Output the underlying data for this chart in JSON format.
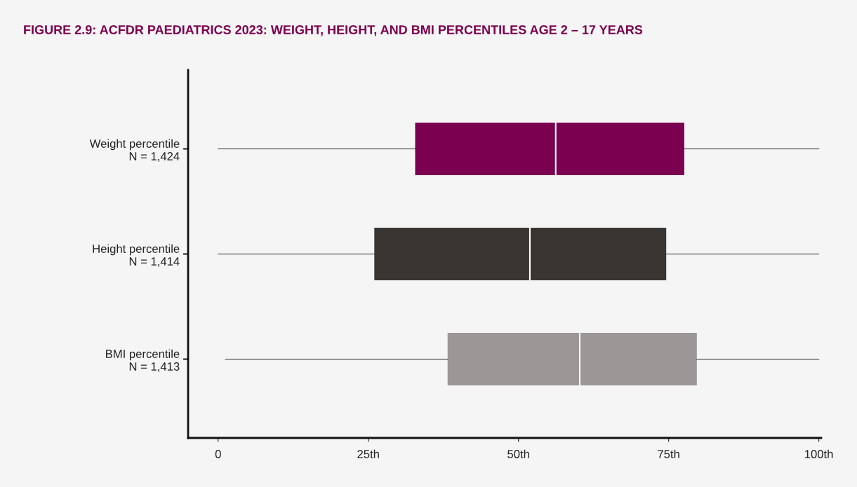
{
  "chart_data": {
    "type": "box",
    "orientation": "horizontal",
    "title": "FIGURE 2.9: ACFDR PAEDIATRICS 2023: WEIGHT, HEIGHT, AND BMI PERCENTILES AGE 2 – 17 YEARS",
    "categories": [
      "Weight percentile\nN = 1,424",
      "Height percentile\nN = 1,414",
      "BMI percentile\nN = 1,413"
    ],
    "boxes": [
      {
        "low": 0,
        "q1": 32.8,
        "median": 56.2,
        "q3": 77.6,
        "high": 100
      },
      {
        "low": 0,
        "q1": 26,
        "median": 51.9,
        "q3": 74.6,
        "high": 100
      },
      {
        "low": 1.2,
        "q1": 38.2,
        "median": 60.2,
        "q3": 79.7,
        "high": 100
      }
    ],
    "colors": [
      "#7b004f",
      "#393533",
      "#9b9796"
    ],
    "xlim": [
      -5,
      100.4
    ],
    "xticks": [
      0,
      {
        "value": 25,
        "label": "25th"
      },
      {
        "value": 50,
        "label": "50th"
      },
      {
        "value": 75,
        "label": "75th"
      },
      {
        "value": 100,
        "label": "100th"
      }
    ],
    "grid": false
  }
}
